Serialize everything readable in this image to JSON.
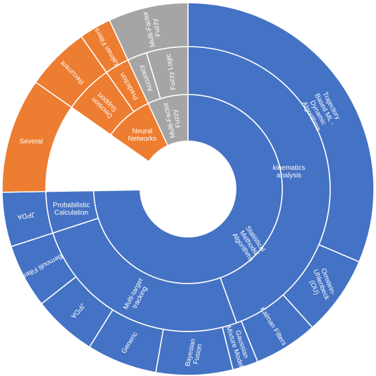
{
  "chart_data": {
    "type": "sunburst",
    "title": "",
    "colors": {
      "blue": "#4472c4",
      "orange": "#ed7d31",
      "gray": "#a5a5a5"
    },
    "rings": [
      {
        "level": 1,
        "segments": [
          {
            "label": "Statistical\nMethods/\nAlgorithms",
            "start": 0,
            "end": 269,
            "color": "#4472c4"
          },
          {
            "label": "Neural\nNetworks",
            "start": 305,
            "end": 335,
            "color": "#ed7d31"
          },
          {
            "label": "Multi-Factor\nFuzzy",
            "start": 335,
            "end": 360,
            "color": "#a5a5a5"
          }
        ]
      },
      {
        "level": 2,
        "segments": [
          {
            "label": "kinematics\nanalysis",
            "start": 0,
            "end": 160,
            "color": "#4472c4"
          },
          {
            "label": "Multi-target\ntracking",
            "start": 160,
            "end": 252,
            "color": "#4472c4"
          },
          {
            "label": "Probabilistic\nCalculation",
            "start": 252,
            "end": 269,
            "color": "#4472c4"
          },
          {
            "label": "Decision\nSupport",
            "start": 305,
            "end": 325,
            "color": "#ed7d31"
          },
          {
            "label": "Prediction",
            "start": 325,
            "end": 335,
            "color": "#ed7d31"
          },
          {
            "label": "Accuracy",
            "start": 335,
            "end": 343,
            "color": "#a5a5a5"
          },
          {
            "label": "Fuzzy Logic",
            "start": 343,
            "end": 360,
            "color": "#a5a5a5"
          }
        ]
      },
      {
        "level": 3,
        "segments": [
          {
            "label": "Trajectory\nBased ML -\nDynamic\nAlgorithms",
            "start": 0,
            "end": 113,
            "color": "#4472c4"
          },
          {
            "label": "Ornstein-\nUhlenbeck\n(OU)",
            "start": 113,
            "end": 138,
            "color": "#4472c4"
          },
          {
            "label": "Kalman Filters",
            "start": 138,
            "end": 158,
            "color": "#4472c4"
          },
          {
            "label": "Gaussian\nMixture Model",
            "start": 158,
            "end": 166,
            "color": "#4472c4"
          },
          {
            "label": "Bayesian\nFusion",
            "start": 166,
            "end": 190,
            "color": "#4472c4"
          },
          {
            "label": "Generic",
            "start": 190,
            "end": 212,
            "color": "#4472c4"
          },
          {
            "label": "JPDA",
            "start": 212,
            "end": 232,
            "color": "#4472c4"
          },
          {
            "label": "Bernoulli Filter",
            "start": 232,
            "end": 252,
            "color": "#4472c4"
          },
          {
            "label": "JPDA",
            "start": 252,
            "end": 269,
            "color": "#4472c4"
          },
          {
            "label": "Several",
            "start": 269,
            "end": 305,
            "color": "#ed7d31"
          },
          {
            "label": "Recurrent",
            "start": 305,
            "end": 325,
            "color": "#ed7d31"
          },
          {
            "label": "Kalman Filters",
            "start": 325,
            "end": 335,
            "color": "#ed7d31"
          },
          {
            "label": "Multi-Factor\nFuzzy",
            "start": 335,
            "end": 360,
            "color": "#a5a5a5"
          }
        ]
      }
    ]
  }
}
